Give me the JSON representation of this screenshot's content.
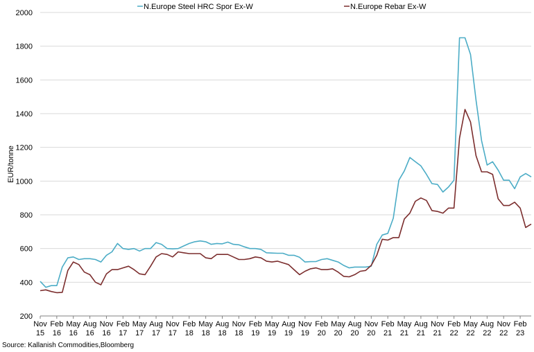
{
  "source_note": "Source: Kallanish Commodities,Bloomberg",
  "chart_data": {
    "type": "line",
    "ylabel": "EUR/tonne",
    "ylim": [
      200,
      2000
    ],
    "yticks": [
      200,
      400,
      600,
      800,
      1000,
      1200,
      1400,
      1600,
      1800,
      2000
    ],
    "grid": "horizontal",
    "legend_position": "top",
    "x_tick_labels": [
      [
        "Nov",
        "15"
      ],
      [
        "Feb",
        "16"
      ],
      [
        "May",
        "16"
      ],
      [
        "Aug",
        "16"
      ],
      [
        "Nov",
        "16"
      ],
      [
        "Feb",
        "17"
      ],
      [
        "May",
        "17"
      ],
      [
        "Aug",
        "17"
      ],
      [
        "Nov",
        "17"
      ],
      [
        "Feb",
        "18"
      ],
      [
        "May",
        "18"
      ],
      [
        "Aug",
        "18"
      ],
      [
        "Nov",
        "18"
      ],
      [
        "Feb",
        "19"
      ],
      [
        "May",
        "19"
      ],
      [
        "Aug",
        "19"
      ],
      [
        "Nov",
        "19"
      ],
      [
        "Feb",
        "20"
      ],
      [
        "May",
        "20"
      ],
      [
        "Aug",
        "20"
      ],
      [
        "Nov",
        "20"
      ],
      [
        "Feb",
        "21"
      ],
      [
        "May",
        "21"
      ],
      [
        "Aug",
        "21"
      ],
      [
        "Nov",
        "21"
      ],
      [
        "Feb",
        "22"
      ],
      [
        "May",
        "22"
      ],
      [
        "Aug",
        "22"
      ],
      [
        "Nov",
        "22"
      ],
      [
        "Feb",
        "23"
      ]
    ],
    "x": [
      "2015-11",
      "2015-12",
      "2016-01",
      "2016-02",
      "2016-03",
      "2016-04",
      "2016-05",
      "2016-06",
      "2016-07",
      "2016-08",
      "2016-09",
      "2016-10",
      "2016-11",
      "2016-12",
      "2017-01",
      "2017-02",
      "2017-03",
      "2017-04",
      "2017-05",
      "2017-06",
      "2017-07",
      "2017-08",
      "2017-09",
      "2017-10",
      "2017-11",
      "2017-12",
      "2018-01",
      "2018-02",
      "2018-03",
      "2018-04",
      "2018-05",
      "2018-06",
      "2018-07",
      "2018-08",
      "2018-09",
      "2018-10",
      "2018-11",
      "2018-12",
      "2019-01",
      "2019-02",
      "2019-03",
      "2019-04",
      "2019-05",
      "2019-06",
      "2019-07",
      "2019-08",
      "2019-09",
      "2019-10",
      "2019-11",
      "2019-12",
      "2020-01",
      "2020-02",
      "2020-03",
      "2020-04",
      "2020-05",
      "2020-06",
      "2020-07",
      "2020-08",
      "2020-09",
      "2020-10",
      "2020-11",
      "2020-12",
      "2021-01",
      "2021-02",
      "2021-03",
      "2021-04",
      "2021-05",
      "2021-06",
      "2021-07",
      "2021-08",
      "2021-09",
      "2021-10",
      "2021-11",
      "2021-12",
      "2022-01",
      "2022-02",
      "2022-03",
      "2022-04",
      "2022-05",
      "2022-06",
      "2022-07",
      "2022-08",
      "2022-09",
      "2022-10",
      "2022-11",
      "2022-12",
      "2023-01",
      "2023-02",
      "2023-03",
      "2023-04"
    ],
    "series": [
      {
        "name": "N.Europe Steel HRC Spor Ex-W",
        "color": "#4bacc6",
        "values": [
          405,
          370,
          380,
          380,
          490,
          545,
          550,
          535,
          540,
          540,
          535,
          520,
          560,
          580,
          630,
          600,
          595,
          600,
          585,
          600,
          600,
          635,
          625,
          600,
          598,
          600,
          615,
          630,
          640,
          645,
          640,
          625,
          630,
          628,
          638,
          625,
          622,
          610,
          600,
          600,
          595,
          575,
          573,
          572,
          572,
          560,
          560,
          548,
          520,
          522,
          523,
          535,
          540,
          530,
          520,
          500,
          485,
          490,
          490,
          490,
          495,
          625,
          680,
          690,
          780,
          1005,
          1060,
          1140,
          1115,
          1090,
          1040,
          985,
          980,
          935,
          965,
          1005,
          1850,
          1850,
          1750,
          1480,
          1240,
          1095,
          1115,
          1065,
          1005,
          1005,
          955,
          1025,
          1045,
          1025
        ]
      },
      {
        "name": "N.Europe Rebar Ex-W",
        "color": "#7b2d2d",
        "values": [
          350,
          355,
          345,
          338,
          340,
          470,
          520,
          505,
          460,
          445,
          400,
          385,
          450,
          475,
          475,
          485,
          495,
          475,
          450,
          445,
          495,
          550,
          570,
          565,
          550,
          580,
          575,
          570,
          570,
          570,
          545,
          540,
          565,
          565,
          565,
          550,
          535,
          535,
          540,
          550,
          545,
          525,
          520,
          525,
          515,
          505,
          475,
          445,
          465,
          480,
          485,
          475,
          475,
          480,
          460,
          435,
          432,
          445,
          465,
          470,
          500,
          560,
          655,
          650,
          665,
          665,
          775,
          810,
          880,
          900,
          885,
          825,
          820,
          810,
          840,
          840,
          1255,
          1425,
          1350,
          1150,
          1055,
          1055,
          1040,
          895,
          855,
          855,
          875,
          840,
          725,
          745
        ]
      }
    ]
  }
}
